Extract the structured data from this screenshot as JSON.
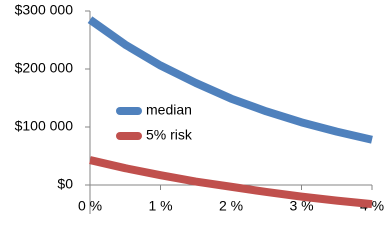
{
  "chart_data": {
    "type": "line",
    "x": [
      0,
      0.5,
      1,
      1.5,
      2,
      2.5,
      3,
      3.5,
      4
    ],
    "series": [
      {
        "name": "median",
        "color": "#4f81bd",
        "values": [
          285000,
          242000,
          206000,
          176000,
          149000,
          127000,
          108000,
          92000,
          78000
        ]
      },
      {
        "name": "5% risk",
        "color": "#c0504d",
        "values": [
          43000,
          29000,
          17000,
          6000,
          -3000,
          -12000,
          -20000,
          -27000,
          -33000
        ]
      }
    ],
    "xlim": [
      0,
      4
    ],
    "xticks": [
      {
        "value": 0,
        "label": "0 %"
      },
      {
        "value": 1,
        "label": "1 %"
      },
      {
        "value": 2,
        "label": "2 %"
      },
      {
        "value": 3,
        "label": "3 %"
      },
      {
        "value": 4,
        "label": "4 %"
      }
    ],
    "ylim": [
      -50000,
      300000
    ],
    "yticks": [
      {
        "value": 0,
        "label": "$0"
      },
      {
        "value": 100000,
        "label": "$100 000"
      },
      {
        "value": 200000,
        "label": "$200 000"
      },
      {
        "value": 300000,
        "label": "$300 000"
      }
    ],
    "grid": false,
    "legend": "left"
  }
}
